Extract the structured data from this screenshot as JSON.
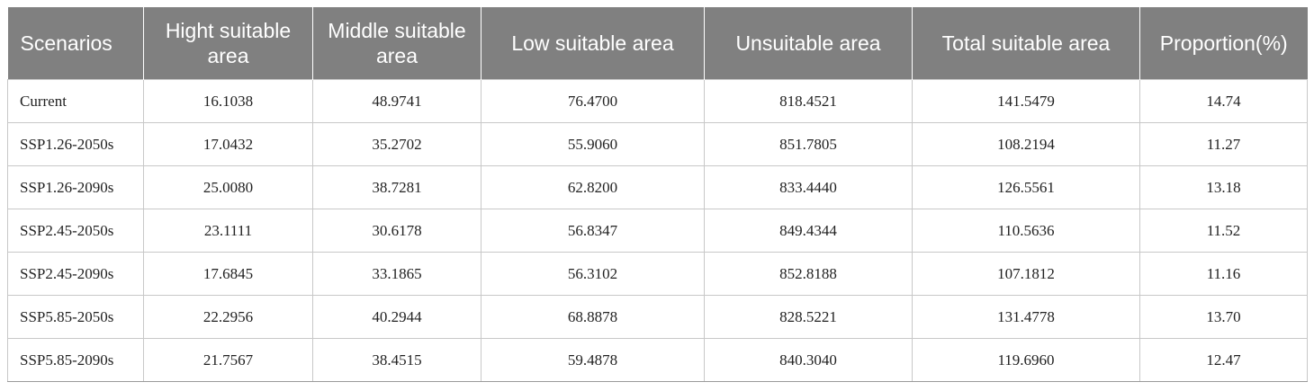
{
  "table": {
    "headers": [
      "Scenarios",
      "Hight suitable area",
      "Middle suitable area",
      "Low suitable area",
      "Unsuitable area",
      "Total suitable area",
      "Proportion(%)"
    ],
    "rows": [
      [
        "Current",
        "16.1038",
        "48.9741",
        "76.4700",
        "818.4521",
        "141.5479",
        "14.74"
      ],
      [
        "SSP1.26-2050s",
        "17.0432",
        "35.2702",
        "55.9060",
        "851.7805",
        "108.2194",
        "11.27"
      ],
      [
        "SSP1.26-2090s",
        "25.0080",
        "38.7281",
        "62.8200",
        "833.4440",
        "126.5561",
        "13.18"
      ],
      [
        "SSP2.45-2050s",
        "23.1111",
        "30.6178",
        "56.8347",
        "849.4344",
        "110.5636",
        "11.52"
      ],
      [
        "SSP2.45-2090s",
        "17.6845",
        "33.1865",
        "56.3102",
        "852.8188",
        "107.1812",
        "11.16"
      ],
      [
        "SSP5.85-2050s",
        "22.2956",
        "40.2944",
        "68.8878",
        "828.5221",
        "131.4778",
        "13.70"
      ],
      [
        "SSP5.85-2090s",
        "21.7567",
        "38.4515",
        "59.4878",
        "840.3040",
        "119.6960",
        "12.47"
      ]
    ]
  },
  "colors": {
    "header_bg": "#808080",
    "header_text": "#ffffff",
    "grid": "#c8c8c8"
  }
}
